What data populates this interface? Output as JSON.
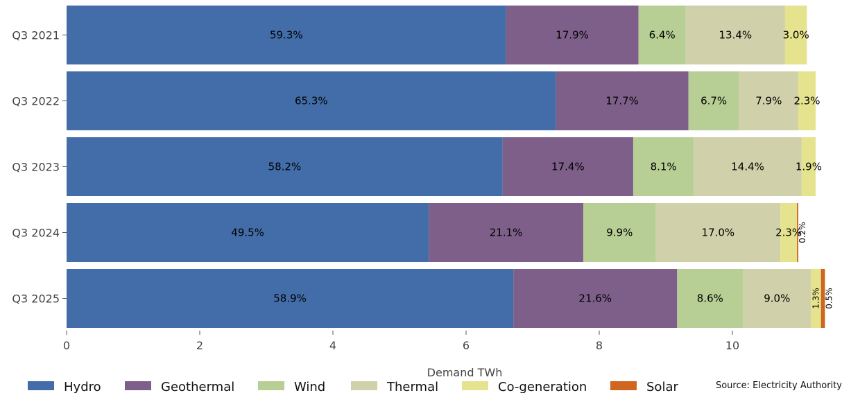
{
  "chart_data": {
    "type": "bar",
    "orientation": "horizontal",
    "stacked": true,
    "categories": [
      "Q3 2021",
      "Q3 2022",
      "Q3 2023",
      "Q3 2024",
      "Q3 2025"
    ],
    "series": [
      {
        "name": "Hydro",
        "color": "#436da9",
        "values": [
          6.6,
          7.35,
          6.55,
          5.44,
          6.71
        ],
        "labels": [
          "59.3%",
          "65.3%",
          "58.2%",
          "49.5%",
          "58.9%"
        ]
      },
      {
        "name": "Geothermal",
        "color": "#7e5f8a",
        "values": [
          1.99,
          1.99,
          1.96,
          2.32,
          2.46
        ],
        "labels": [
          "17.9%",
          "17.7%",
          "17.4%",
          "21.1%",
          "21.6%"
        ]
      },
      {
        "name": "Wind",
        "color": "#b7cf95",
        "values": [
          0.71,
          0.76,
          0.91,
          1.09,
          0.99
        ],
        "labels": [
          "6.4%",
          "6.7%",
          "8.1%",
          "9.9%",
          "8.6%"
        ]
      },
      {
        "name": "Thermal",
        "color": "#d0d1aa",
        "values": [
          1.49,
          0.89,
          1.62,
          1.87,
          1.02
        ],
        "labels": [
          "13.4%",
          "7.9%",
          "14.4%",
          "17.0%",
          "9.0%"
        ]
      },
      {
        "name": "Co-generation",
        "color": "#e5e38d",
        "values": [
          0.33,
          0.26,
          0.21,
          0.25,
          0.15
        ],
        "labels": [
          "3.0%",
          "2.3%",
          "1.9%",
          "2.3%",
          "1.3%"
        ]
      },
      {
        "name": "Solar",
        "color": "#d0651f",
        "values": [
          0.0,
          0.0,
          0.0,
          0.02,
          0.06
        ],
        "labels": [
          "",
          "",
          "",
          "0.2%",
          "0.5%"
        ]
      }
    ],
    "xlabel": "Demand TWh",
    "ylabel": "",
    "xlim": [
      0,
      11.4
    ],
    "xticks": [
      0,
      2,
      4,
      6,
      8,
      10
    ],
    "grid": false,
    "legend": "bottom",
    "source": "Source: Electricity Authority"
  }
}
